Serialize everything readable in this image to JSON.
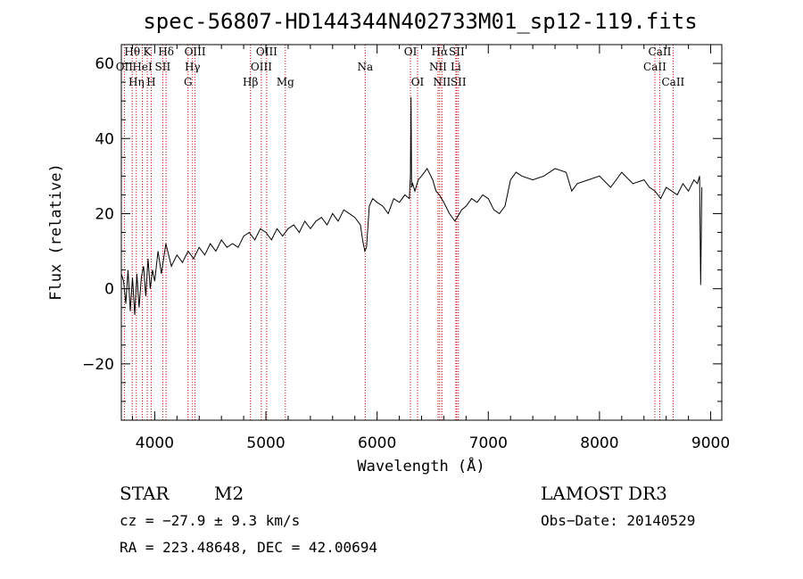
{
  "chart_data": {
    "type": "line",
    "title": "spec-56807-HD144344N402733M01_sp12-119.fits",
    "xlabel": "Wavelength (Å)",
    "ylabel": "Flux (relative)",
    "xlim": [
      3700,
      9100
    ],
    "ylim": [
      -35,
      65
    ],
    "xticks": [
      4000,
      5000,
      6000,
      7000,
      8000,
      9000
    ],
    "xtick_labels": [
      "4000",
      "5000",
      "6000",
      "7000",
      "8000",
      "9000"
    ],
    "yticks": [
      -20,
      0,
      20,
      40,
      60
    ],
    "ytick_labels": [
      "−20",
      "0",
      "20",
      "40",
      "60"
    ],
    "grid": false,
    "series": [
      {
        "x": [
          3700,
          3720,
          3740,
          3760,
          3780,
          3800,
          3820,
          3840,
          3860,
          3880,
          3900,
          3920,
          3940,
          3960,
          3980,
          4000,
          4030,
          4060,
          4100,
          4150,
          4200,
          4250,
          4300,
          4350,
          4400,
          4450,
          4500,
          4550,
          4600,
          4650,
          4700,
          4750,
          4800,
          4850,
          4900,
          4950,
          5000,
          5050,
          5100,
          5150,
          5200,
          5250,
          5300,
          5350,
          5400,
          5450,
          5500,
          5550,
          5600,
          5650,
          5700,
          5750,
          5800,
          5850,
          5870,
          5890,
          5905,
          5930,
          5960,
          6000,
          6050,
          6100,
          6150,
          6200,
          6250,
          6290,
          6300,
          6305,
          6310,
          6320,
          6340,
          6370,
          6400,
          6450,
          6500,
          6530,
          6560,
          6600,
          6650,
          6700,
          6720,
          6760,
          6800,
          6850,
          6900,
          6950,
          7000,
          7050,
          7100,
          7150,
          7200,
          7250,
          7300,
          7400,
          7500,
          7600,
          7700,
          7750,
          7800,
          7900,
          8000,
          8100,
          8200,
          8300,
          8400,
          8450,
          8500,
          8550,
          8600,
          8650,
          8700,
          8750,
          8800,
          8850,
          8880,
          8900,
          8910,
          8920
        ],
        "y": [
          4,
          2,
          -4,
          5,
          -6,
          3,
          -7,
          4,
          -5,
          3,
          6,
          -2,
          8,
          0,
          5,
          2,
          10,
          4,
          12,
          6,
          9,
          7,
          10,
          8,
          11,
          9,
          12,
          10,
          13,
          11,
          12,
          11,
          14,
          15,
          13,
          16,
          15,
          13,
          16,
          14,
          16,
          17,
          15,
          18,
          16,
          18,
          19,
          17,
          20,
          18,
          21,
          20,
          19,
          17,
          13,
          10,
          11,
          22,
          24,
          23,
          22,
          20,
          24,
          23,
          25,
          24,
          30,
          51,
          27,
          28,
          26,
          29,
          30,
          32,
          29,
          26,
          25,
          23,
          20,
          18,
          19,
          21,
          22,
          24,
          23,
          25,
          24,
          21,
          20,
          22,
          29,
          31,
          30,
          29,
          30,
          32,
          31,
          26,
          28,
          29,
          30,
          27,
          31,
          28,
          29,
          27,
          26,
          24,
          27,
          26,
          25,
          28,
          26,
          29,
          28,
          30,
          1,
          27
        ]
      }
    ],
    "spectral_lines": [
      {
        "name": "Hθ",
        "x": 3798,
        "row": 1
      },
      {
        "name": "OII",
        "x": 3727,
        "row": 2
      },
      {
        "name": "Hη",
        "x": 3835,
        "row": 3
      },
      {
        "name": "HeI",
        "x": 3889,
        "row": 2
      },
      {
        "name": "K",
        "x": 3933,
        "row": 1
      },
      {
        "name": "SII",
        "x": 4072,
        "row": 2
      },
      {
        "name": "H",
        "x": 3968,
        "row": 3
      },
      {
        "name": "Hδ",
        "x": 4102,
        "row": 1
      },
      {
        "name": "OIII",
        "x": 4363,
        "row": 1
      },
      {
        "name": "Hγ",
        "x": 4340,
        "row": 2
      },
      {
        "name": "G",
        "x": 4300,
        "row": 3
      },
      {
        "name": "Hβ",
        "x": 4861,
        "row": 3
      },
      {
        "name": "OIII",
        "x": 5007,
        "row": 1
      },
      {
        "name": "OIII",
        "x": 4959,
        "row": 2
      },
      {
        "name": "Mg",
        "x": 5175,
        "row": 3
      },
      {
        "name": "Na",
        "x": 5893,
        "row": 2
      },
      {
        "name": "OI",
        "x": 6300,
        "row": 1
      },
      {
        "name": "OI",
        "x": 6364,
        "row": 3
      },
      {
        "name": "Hα",
        "x": 6563,
        "row": 1
      },
      {
        "name": "SII",
        "x": 6716,
        "row": 1
      },
      {
        "name": "NII",
        "x": 6548,
        "row": 2
      },
      {
        "name": "Li",
        "x": 6708,
        "row": 2
      },
      {
        "name": "NII",
        "x": 6583,
        "row": 3
      },
      {
        "name": "SII",
        "x": 6731,
        "row": 3
      },
      {
        "name": "CaII",
        "x": 8542,
        "row": 1
      },
      {
        "name": "CaII",
        "x": 8498,
        "row": 2
      },
      {
        "name": "CaII",
        "x": 8662,
        "row": 3
      }
    ],
    "line_color": "#000000",
    "marker_color": "#cc0000"
  },
  "info": {
    "class": "STAR",
    "subclass": "M2",
    "survey": "LAMOST DR3",
    "cz": "cz = −27.9 ± 9.3 km/s",
    "obs_date": "Obs−Date: 20140529",
    "coords": "RA = 223.48648, DEC =  42.00694"
  }
}
